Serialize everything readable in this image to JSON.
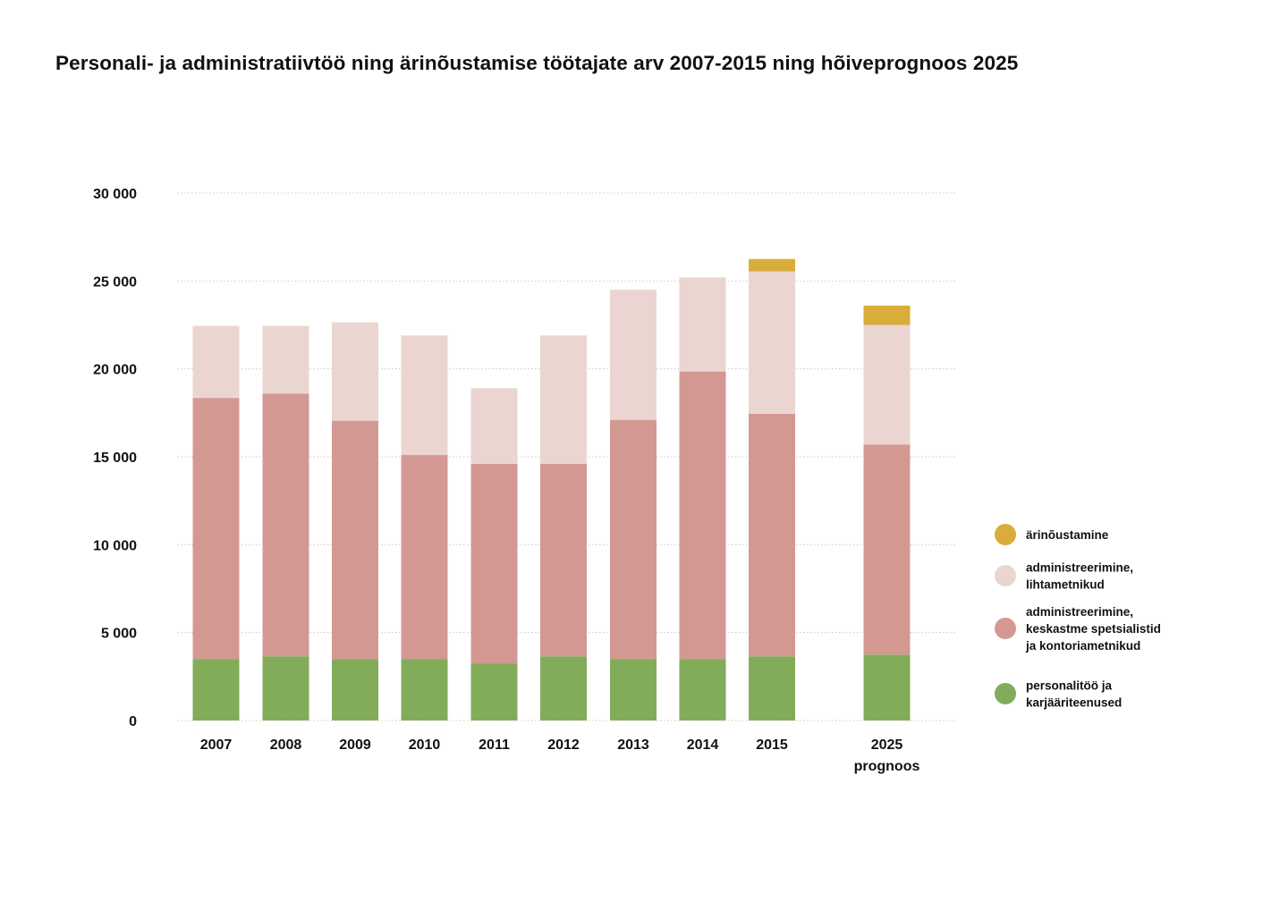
{
  "chart_data": {
    "type": "bar",
    "stacked": true,
    "title": "Personali- ja administratiivtöö ning ärinõustamise töötajate arv 2007-2015 ning hõiveprognoos 2025",
    "xlabel": "",
    "ylabel": "",
    "ylim": [
      0,
      30000
    ],
    "yticks": [
      0,
      5000,
      10000,
      15000,
      20000,
      25000,
      30000
    ],
    "ytick_labels": [
      "0",
      "5 000",
      "10 000",
      "15 000",
      "20 000",
      "25 000",
      "30 000"
    ],
    "grid": true,
    "legend_position": "right",
    "categories": [
      {
        "lines": [
          "2007"
        ]
      },
      {
        "lines": [
          "2008"
        ]
      },
      {
        "lines": [
          "2009"
        ]
      },
      {
        "lines": [
          "2010"
        ]
      },
      {
        "lines": [
          "2011"
        ]
      },
      {
        "lines": [
          "2012"
        ]
      },
      {
        "lines": [
          "2013"
        ]
      },
      {
        "lines": [
          "2014"
        ]
      },
      {
        "lines": [
          "2015"
        ]
      },
      {
        "lines": [
          "2025",
          "prognoos"
        ]
      }
    ],
    "series": [
      {
        "name_lines": [
          "personalitöö ja",
          "karjääriteenused"
        ],
        "color": "#82ac5a",
        "values": [
          3500,
          3650,
          3500,
          3500,
          3250,
          3650,
          3500,
          3500,
          3650,
          3750
        ]
      },
      {
        "name_lines": [
          "administreerimine,",
          "keskastme spetsialistid",
          "ja kontoriametnikud"
        ],
        "color": "#d49893",
        "values": [
          14850,
          14950,
          13550,
          11600,
          11350,
          10950,
          13600,
          16350,
          13800,
          11950
        ]
      },
      {
        "name_lines": [
          "administreerimine,",
          "lihtametnikud"
        ],
        "color": "#ebd5d0",
        "values": [
          4100,
          3850,
          5600,
          6800,
          4300,
          7300,
          7400,
          5350,
          8100,
          6800
        ]
      },
      {
        "name_lines": [
          "ärinõustamine"
        ],
        "color": "#d9ad39",
        "values": [
          0,
          0,
          0,
          0,
          0,
          0,
          0,
          0,
          700,
          1100
        ]
      }
    ]
  }
}
